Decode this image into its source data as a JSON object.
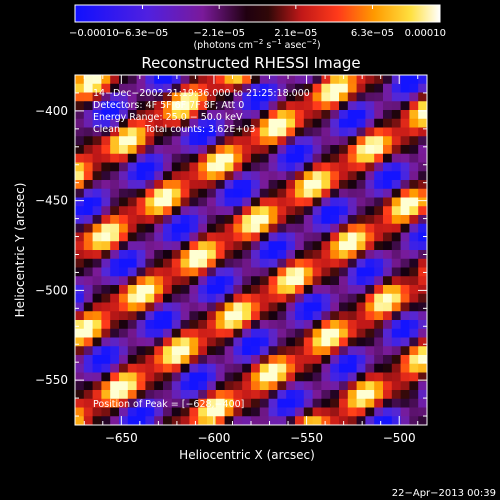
{
  "chart_data": {
    "type": "heatmap",
    "title": "Reconstructed RHESSI Image",
    "xlabel": "Heliocentric X (arcsec)",
    "ylabel": "Heliocentric Y (arcsec)",
    "xlim": [
      -675,
      -485
    ],
    "ylim": [
      -575,
      -380
    ],
    "x_ticks": [
      -650,
      -600,
      -550,
      -500
    ],
    "x_tick_labels": [
      "−650",
      "−600",
      "−550",
      "−500"
    ],
    "y_ticks": [
      -400,
      -450,
      -500,
      -550
    ],
    "y_tick_labels": [
      "−400",
      "−450",
      "−500",
      "−550"
    ],
    "colorbar": {
      "range": [
        -0.0001,
        0.0001
      ],
      "tick_values": [
        -0.0001,
        -6.3e-05,
        -2.1e-05,
        2.1e-05,
        6.3e-05,
        0.0001
      ],
      "tick_labels": [
        "−0.00010",
        "−6.3e−05",
        "−2.1e−05",
        "2.1e−05",
        "6.3e−05",
        "0.00010"
      ],
      "units_prefix": "(photons cm",
      "units_exp1": "−2",
      "units_mid": " s",
      "units_exp2": "−1",
      "units_mid2": " asec",
      "units_exp3": "−2",
      "units_suffix": ")"
    },
    "annotations": {
      "time_range": "14−Dec−2002 21:19:36.000 to 21:25:18.000",
      "detectors": "Detectors: 4F 5F 6F 7F 8F; Att 0",
      "energy": "Energy Range: 25.0 − 50.0 keV",
      "method": "Clean",
      "total_counts": "Total counts: 3.62E+03",
      "peak": "Position of Peak = [−628,−400]"
    },
    "peak_position": [
      -628,
      -400
    ],
    "grid": false
  },
  "footer": {
    "date": "22−Apr−2013 00:39"
  },
  "colors": {
    "colormap": [
      "#000000",
      "#1a1aff",
      "#6a2ad0",
      "#8a1a8a",
      "#000000",
      "#c01818",
      "#ff3a1a",
      "#ff9a00",
      "#ffe040",
      "#ffffc0"
    ]
  }
}
